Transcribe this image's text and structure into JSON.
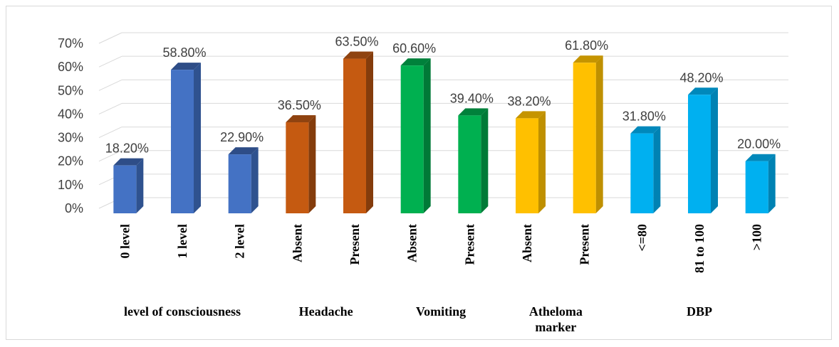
{
  "chart_data": {
    "type": "bar",
    "title": "",
    "xlabel": "",
    "ylabel": "",
    "ylim": [
      0,
      70
    ],
    "yticks": [
      0,
      10,
      20,
      30,
      40,
      50,
      60,
      70
    ],
    "ytick_labels": [
      "0%",
      "10%",
      "20%",
      "30%",
      "40%",
      "50%",
      "60%",
      "70%"
    ],
    "grid": true,
    "legend": "none",
    "style": "3d-column",
    "categories": [
      "0 level",
      "1 level",
      "2 level",
      "Absent",
      "Present",
      "Absent",
      "Present",
      "Absent",
      "Present",
      "<=80",
      "81 to 100",
      ">100"
    ],
    "values": [
      18.2,
      58.8,
      22.9,
      36.5,
      63.5,
      60.6,
      39.4,
      38.2,
      61.8,
      31.8,
      48.2,
      20.0
    ],
    "data_labels": [
      "18.20%",
      "58.80%",
      "22.90%",
      "36.50%",
      "63.50%",
      "60.60%",
      "39.40%",
      "38.20%",
      "61.80%",
      "31.80%",
      "48.20%",
      "20.00%"
    ],
    "groups": [
      {
        "name": "level of consciousness",
        "lines": [
          "level of consciousness"
        ],
        "start": 0,
        "count": 3,
        "color": "#4472c4",
        "side": "#2f528f",
        "top": "#2e4d87"
      },
      {
        "name": "Headache",
        "lines": [
          "Headache"
        ],
        "start": 3,
        "count": 2,
        "color": "#c55a11",
        "side": "#843c0c",
        "top": "#8f4310"
      },
      {
        "name": "Vomiting",
        "lines": [
          "Vomiting"
        ],
        "start": 5,
        "count": 2,
        "color": "#00b050",
        "side": "#007a37",
        "top": "#00813b"
      },
      {
        "name": "Atheloma marker",
        "lines": [
          "Atheloma",
          "marker"
        ],
        "start": 7,
        "count": 2,
        "color": "#ffc000",
        "side": "#bf9000",
        "top": "#c59400"
      },
      {
        "name": "DBP",
        "lines": [
          "DBP"
        ],
        "start": 9,
        "count": 3,
        "color": "#00b0f0",
        "side": "#0082b3",
        "top": "#0088bb"
      }
    ]
  }
}
